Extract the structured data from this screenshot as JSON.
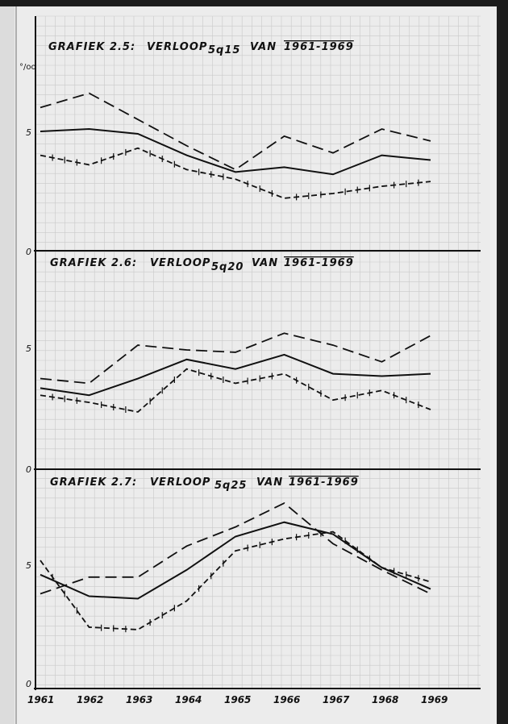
{
  "chart_data": [
    {
      "type": "line",
      "title_prefix": "GRAFIEK 2.5:",
      "title_word": "VERLOOP",
      "title_symbol": "5q15",
      "title_sub": "VAN",
      "title_range": "1961-1969",
      "ylabel": "°/oo",
      "yticks": [
        "0",
        "5"
      ],
      "ylim": [
        0,
        10
      ],
      "x": [
        "1961",
        "1962",
        "1963",
        "1964",
        "1965",
        "1966",
        "1967",
        "1968",
        "1969"
      ],
      "series": [
        {
          "style": "long-dash",
          "values": [
            6.0,
            6.6,
            5.5,
            4.4,
            3.4,
            4.8,
            4.1,
            5.1,
            4.6
          ]
        },
        {
          "style": "solid",
          "values": [
            5.0,
            5.1,
            4.9,
            4.0,
            3.3,
            3.5,
            3.2,
            4.0,
            3.8
          ]
        },
        {
          "style": "cross-dash",
          "values": [
            4.0,
            3.6,
            4.3,
            3.4,
            3.0,
            2.2,
            2.4,
            2.7,
            2.9
          ]
        }
      ]
    },
    {
      "type": "line",
      "title_prefix": "GRAFIEK 2.6:",
      "title_word": "VERLOOP",
      "title_symbol": "5q20",
      "title_sub": "VAN",
      "title_range": "1961-1969",
      "yticks": [
        "0",
        "5"
      ],
      "ylim": [
        0,
        10
      ],
      "x": [
        "1961",
        "1962",
        "1963",
        "1964",
        "1965",
        "1966",
        "1967",
        "1968",
        "1969"
      ],
      "series": [
        {
          "style": "long-dash",
          "values": [
            3.8,
            3.6,
            5.2,
            5.0,
            4.9,
            5.7,
            5.2,
            4.5,
            5.6
          ]
        },
        {
          "style": "solid",
          "values": [
            3.4,
            3.1,
            3.8,
            4.6,
            4.2,
            4.8,
            4.0,
            3.9,
            4.0
          ]
        },
        {
          "style": "cross-dash",
          "values": [
            3.1,
            2.8,
            2.4,
            4.2,
            3.6,
            4.0,
            2.9,
            3.3,
            2.5
          ]
        }
      ]
    },
    {
      "type": "line",
      "title_prefix": "GRAFIEK 2.7:",
      "title_word": "VERLOOP",
      "title_symbol": "5q25",
      "title_sub": "VAN",
      "title_range": "1961-1969",
      "yticks": [
        "0",
        "5"
      ],
      "ylim": [
        0,
        10
      ],
      "x": [
        "1961",
        "1962",
        "1963",
        "1964",
        "1965",
        "1966",
        "1967",
        "1968",
        "1969"
      ],
      "series": [
        {
          "style": "long-dash",
          "values": [
            3.8,
            4.5,
            4.5,
            5.8,
            6.6,
            7.6,
            5.9,
            4.8,
            3.8
          ]
        },
        {
          "style": "solid",
          "values": [
            4.6,
            3.7,
            3.6,
            4.8,
            6.2,
            6.8,
            6.3,
            4.9,
            4.0
          ]
        },
        {
          "style": "cross-dash",
          "values": [
            5.2,
            2.4,
            2.3,
            3.5,
            5.6,
            6.1,
            6.4,
            4.9,
            4.3
          ]
        }
      ]
    }
  ],
  "x_axis_years": [
    "1961",
    "1962",
    "1963",
    "1964",
    "1965",
    "1966",
    "1967",
    "1968",
    "1969"
  ],
  "colors": {
    "paper": "#ececec",
    "grid": "#c9c9c9",
    "ink": "#111111",
    "background": "#1c1c1c"
  }
}
